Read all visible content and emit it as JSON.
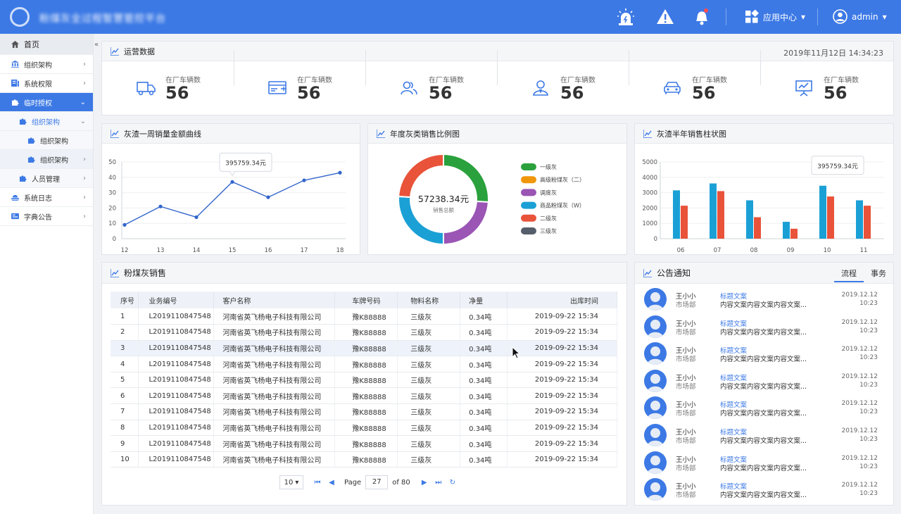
{
  "header": {
    "app_title": "粉煤灰全过程智慧管控平台",
    "app_center": "应用中心",
    "user": "admin"
  },
  "sidebar": {
    "items": [
      {
        "label": "首页",
        "icon": "home-icon"
      },
      {
        "label": "组织架构",
        "icon": "bank-icon"
      },
      {
        "label": "系统权限",
        "icon": "permission-icon"
      },
      {
        "label": "临时授权",
        "icon": "puzzle-icon"
      },
      {
        "label": "组织架构",
        "icon": "puzzle-icon"
      },
      {
        "label": "组织架构",
        "icon": "puzzle-icon"
      },
      {
        "label": "组织架构",
        "icon": "puzzle-icon"
      },
      {
        "label": "人员管理",
        "icon": "puzzle-icon"
      },
      {
        "label": "系统日志",
        "icon": "log-icon"
      },
      {
        "label": "字典公告",
        "icon": "dictionary-icon"
      }
    ]
  },
  "ops": {
    "title": "运营数据",
    "datetime": "2019年11月12日  14:34:23",
    "stats": [
      {
        "label": "在厂车辆数",
        "value": "56",
        "icon": "truck-icon"
      },
      {
        "label": "在厂车辆数",
        "value": "56",
        "icon": "card-icon"
      },
      {
        "label": "在厂车辆数",
        "value": "56",
        "icon": "users-icon"
      },
      {
        "label": "在厂车辆数",
        "value": "56",
        "icon": "person-icon"
      },
      {
        "label": "在厂车辆数",
        "value": "56",
        "icon": "car-icon"
      },
      {
        "label": "在厂车辆数",
        "value": "56",
        "icon": "presentation-icon"
      }
    ]
  },
  "charts": {
    "line_title": "灰渣一周销量金额曲线",
    "donut_title": "年度灰类销售比例图",
    "bar_title": "灰渣半年销售柱状图"
  },
  "chart_data": [
    {
      "type": "line",
      "x": [
        "12",
        "13",
        "14",
        "15",
        "16",
        "17",
        "18"
      ],
      "values": [
        9,
        21,
        14,
        37,
        27,
        38,
        43
      ],
      "ylim": [
        0,
        50
      ],
      "yticks": [
        "0",
        "10",
        "20",
        "30",
        "40",
        "50"
      ],
      "tooltip": "395759.34元",
      "tooltip_index": 3,
      "color": "#3366cc"
    },
    {
      "type": "pie",
      "center_value": "57238.34元",
      "center_label": "销售总额",
      "labels": [
        "一级灰",
        "高级粉煤灰（二）",
        "调度灰",
        "商品粉煤灰（W）",
        "二级灰",
        "三级灰"
      ],
      "colors": [
        "#2aa13c",
        "#f0960c",
        "#9a55b5",
        "#1ba0d6",
        "#e8533a",
        "#555e6a"
      ],
      "values": [
        26,
        0,
        24,
        26,
        24,
        0
      ]
    },
    {
      "type": "bar",
      "categories": [
        "06",
        "07",
        "08",
        "09",
        "10",
        "11"
      ],
      "series": [
        {
          "values": [
            3150,
            3600,
            2500,
            1100,
            3450,
            2500
          ],
          "color": "#1ba0d6"
        },
        {
          "values": [
            2150,
            3100,
            1400,
            650,
            2750,
            2150
          ],
          "color": "#e8533a"
        }
      ],
      "ylim": [
        0,
        5000
      ],
      "yticks": [
        "0",
        "1000",
        "2000",
        "3000",
        "4000",
        "5000"
      ],
      "tooltip": "395759.34元",
      "tooltip_index": 4
    }
  ],
  "table": {
    "title": "粉煤灰销售",
    "columns": [
      "序号",
      "业务编号",
      "客户名称",
      "车牌号码",
      "物料名称",
      "净量",
      "出库时间"
    ],
    "rows": [
      [
        "1",
        "L2019110847548",
        "河南省英飞杨电子科技有限公司",
        "豫K88888",
        "三级灰",
        "0.34吨",
        "2019-09-22  15:34"
      ],
      [
        "2",
        "L2019110847548",
        "河南省英飞杨电子科技有限公司",
        "豫K88888",
        "三级灰",
        "0.34吨",
        "2019-09-22  15:34"
      ],
      [
        "3",
        "L2019110847548",
        "河南省英飞杨电子科技有限公司",
        "豫K88888",
        "三级灰",
        "0.34吨",
        "2019-09-22  15:34"
      ],
      [
        "4",
        "L2019110847548",
        "河南省英飞杨电子科技有限公司",
        "豫K88888",
        "三级灰",
        "0.34吨",
        "2019-09-22  15:34"
      ],
      [
        "5",
        "L2019110847548",
        "河南省英飞杨电子科技有限公司",
        "豫K88888",
        "三级灰",
        "0.34吨",
        "2019-09-22  15:34"
      ],
      [
        "6",
        "L2019110847548",
        "河南省英飞杨电子科技有限公司",
        "豫K88888",
        "三级灰",
        "0.34吨",
        "2019-09-22  15:34"
      ],
      [
        "7",
        "L2019110847548",
        "河南省英飞杨电子科技有限公司",
        "豫K88888",
        "三级灰",
        "0.34吨",
        "2019-09-22  15:34"
      ],
      [
        "8",
        "L2019110847548",
        "河南省英飞杨电子科技有限公司",
        "豫K88888",
        "三级灰",
        "0.34吨",
        "2019-09-22  15:34"
      ],
      [
        "9",
        "L2019110847548",
        "河南省英飞杨电子科技有限公司",
        "豫K88888",
        "三级灰",
        "0.34吨",
        "2019-09-22  15:34"
      ],
      [
        "10",
        "L2019110847548",
        "河南省英飞杨电子科技有限公司",
        "豫K88888",
        "三级灰",
        "0.34吨",
        "2019-09-22  15:34"
      ]
    ]
  },
  "pager": {
    "page_size": "10",
    "page_label": "Page",
    "page": "27",
    "total": "of 80"
  },
  "notices": {
    "title": "公告通知",
    "tabs": [
      "流程",
      "事务"
    ],
    "items": [
      {
        "name": "王小小",
        "dept": "市场部",
        "title": "标题文案",
        "content": "内容文案内容文案内容文案...",
        "date": "2019.12.12",
        "time": "10:23"
      },
      {
        "name": "王小小",
        "dept": "市场部",
        "title": "标题文案",
        "content": "内容文案内容文案内容文案...",
        "date": "2019.12.12",
        "time": "10:23"
      },
      {
        "name": "王小小",
        "dept": "市场部",
        "title": "标题文案",
        "content": "内容文案内容文案内容文案...",
        "date": "2019.12.12",
        "time": "10:23"
      },
      {
        "name": "王小小",
        "dept": "市场部",
        "title": "标题文案",
        "content": "内容文案内容文案内容文案...",
        "date": "2019.12.12",
        "time": "10:23"
      },
      {
        "name": "王小小",
        "dept": "市场部",
        "title": "标题文案",
        "content": "内容文案内容文案内容文案...",
        "date": "2019.12.12",
        "time": "10:23"
      },
      {
        "name": "王小小",
        "dept": "市场部",
        "title": "标题文案",
        "content": "内容文案内容文案内容文案...",
        "date": "2019.12.12",
        "time": "10:23"
      },
      {
        "name": "王小小",
        "dept": "市场部",
        "title": "标题文案",
        "content": "内容文案内容文案内容文案...",
        "date": "2019.12.12",
        "time": "10:23"
      },
      {
        "name": "王小小",
        "dept": "市场部",
        "title": "标题文案",
        "content": "内容文案内容文案内容文案...",
        "date": "2019.12.12",
        "time": "10:23"
      }
    ]
  }
}
